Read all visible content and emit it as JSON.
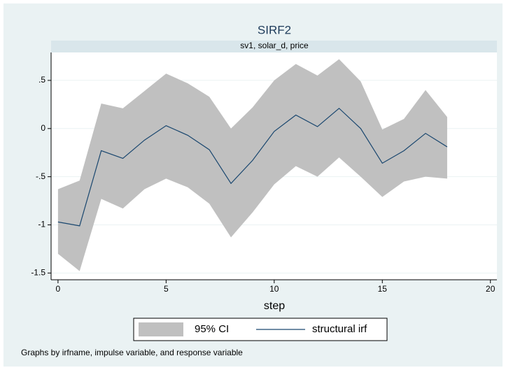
{
  "chart_data": {
    "type": "line",
    "title": "SIRF2",
    "subtitle": "sv1, solar_d, price",
    "x_label": "step",
    "note": "Graphs by irfname, impulse variable, and response variable",
    "x": [
      0,
      1,
      2,
      3,
      4,
      5,
      6,
      7,
      8,
      9,
      10,
      11,
      12,
      13,
      14,
      15,
      16,
      17,
      18
    ],
    "ci": {
      "name": "95% CI",
      "color": "#c0c0c0",
      "upper": [
        -0.63,
        -0.54,
        0.26,
        0.21,
        0.39,
        0.57,
        0.47,
        0.33,
        0.0,
        0.22,
        0.5,
        0.67,
        0.55,
        0.72,
        0.49,
        -0.01,
        0.1,
        0.4,
        0.12
      ],
      "lower": [
        -1.3,
        -1.48,
        -0.73,
        -0.83,
        -0.63,
        -0.52,
        -0.61,
        -0.78,
        -1.13,
        -0.87,
        -0.58,
        -0.39,
        -0.5,
        -0.3,
        -0.5,
        -0.71,
        -0.55,
        -0.5,
        -0.52
      ]
    },
    "series": [
      {
        "name": "structural irf",
        "color": "#1a476f",
        "values": [
          -0.97,
          -1.01,
          -0.23,
          -0.31,
          -0.12,
          0.03,
          -0.07,
          -0.22,
          -0.57,
          -0.33,
          -0.03,
          0.14,
          0.02,
          0.21,
          0.0,
          -0.36,
          -0.23,
          -0.05,
          -0.19
        ]
      }
    ],
    "xlim": [
      -0.32,
      20.3
    ],
    "ylim": [
      -1.57,
      0.79
    ],
    "xticks": [
      0,
      5,
      10,
      15,
      20
    ],
    "yticks": [
      {
        "value": 0.5,
        "label": ".5"
      },
      0,
      {
        "value": -0.5,
        "label": "-.5"
      },
      -1,
      -1.5
    ],
    "grid": true
  }
}
